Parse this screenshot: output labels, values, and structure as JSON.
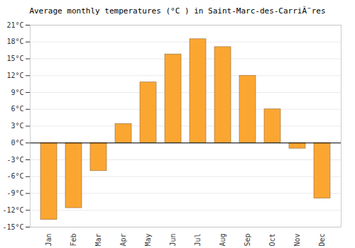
{
  "chart_data": {
    "type": "bar",
    "title": "Average monthly temperatures (°C ) in Saint-Marc-des-CarriÃ¨res",
    "categories": [
      "Jan",
      "Feb",
      "Mar",
      "Apr",
      "May",
      "Jun",
      "Jul",
      "Aug",
      "Sep",
      "Oct",
      "Nov",
      "Dec"
    ],
    "values": [
      -13.7,
      -11.6,
      -5,
      3.4,
      10.8,
      15.8,
      18.5,
      17.1,
      12,
      6,
      -1,
      -9.9
    ],
    "color": "#fca632",
    "ylim": [
      -15,
      21
    ],
    "yticks": [
      {
        "value": -15,
        "label": "-15°C"
      },
      {
        "value": -12,
        "label": "-12°C"
      },
      {
        "value": -9,
        "label": "-9°C"
      },
      {
        "value": -6,
        "label": "-6°C"
      },
      {
        "value": -3,
        "label": "-3°C"
      },
      {
        "value": 0,
        "label": "0°C"
      },
      {
        "value": 3,
        "label": "3°C"
      },
      {
        "value": 6,
        "label": "6°C"
      },
      {
        "value": 9,
        "label": "9°C"
      },
      {
        "value": 12,
        "label": "12°C"
      },
      {
        "value": 15,
        "label": "15°C"
      },
      {
        "value": 18,
        "label": "18°C"
      },
      {
        "value": 21,
        "label": "21°C"
      }
    ],
    "grid": true
  }
}
